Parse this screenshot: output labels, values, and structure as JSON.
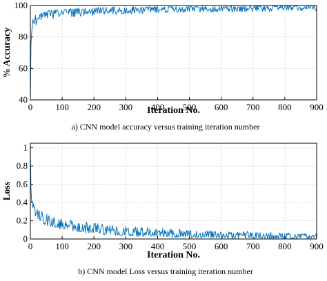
{
  "colors": {
    "series": "#0072BD",
    "grid": "#d9d9d9",
    "axis": "#000000"
  },
  "chart_data": [
    {
      "type": "line",
      "caption": "a)   CNN model accuracy versus training iteration number",
      "xlabel": "Iteration No.",
      "ylabel": "% Accuracy",
      "xlim": [
        0,
        900
      ],
      "ylim": [
        40,
        100
      ],
      "xticks": [
        0,
        100,
        200,
        300,
        400,
        500,
        600,
        700,
        800,
        900
      ],
      "yticks": [
        40,
        60,
        80,
        100
      ],
      "grid": true,
      "series": [
        {
          "x": [
            0,
            1,
            2,
            3,
            5,
            10,
            15,
            20,
            30,
            40,
            50,
            60,
            80,
            100,
            150,
            200,
            250,
            300,
            400,
            500,
            600,
            700,
            800,
            900
          ],
          "y": [
            40,
            70,
            80,
            86,
            89,
            92,
            93,
            94,
            95,
            95.5,
            96,
            96.5,
            97,
            97.3,
            97.8,
            98.2,
            98.5,
            98.7,
            99,
            99.2,
            99.3,
            99.4,
            99.5,
            99.6
          ],
          "dip_y": [
            40,
            55,
            72,
            80,
            84,
            86,
            87,
            88,
            89,
            90,
            91,
            91.5,
            92,
            92.5,
            93,
            93.5,
            94,
            94.5,
            95,
            95.5,
            96,
            96,
            96.5,
            96.5
          ]
        }
      ]
    },
    {
      "type": "line",
      "caption": "b)   CNN model Loss versus training iteration number",
      "xlabel": "Iteration No.",
      "ylabel": "Loss",
      "xlim": [
        0,
        900
      ],
      "ylim": [
        0,
        1.05
      ],
      "xticks": [
        0,
        100,
        200,
        300,
        400,
        500,
        600,
        700,
        800,
        900
      ],
      "yticks": [
        0,
        0.2,
        0.4,
        0.6,
        0.8,
        1
      ],
      "ytick_labels": [
        "0",
        "0.2",
        "0.4",
        "0.6",
        "0.8",
        "1"
      ],
      "grid": true,
      "series": [
        {
          "x": [
            0,
            1,
            2,
            3,
            5,
            10,
            15,
            20,
            30,
            40,
            50,
            60,
            80,
            100,
            150,
            200,
            250,
            300,
            400,
            500,
            600,
            700,
            800,
            900
          ],
          "y": [
            1.0,
            0.72,
            0.55,
            0.45,
            0.38,
            0.3,
            0.26,
            0.23,
            0.2,
            0.18,
            0.16,
            0.15,
            0.13,
            0.12,
            0.09,
            0.07,
            0.055,
            0.045,
            0.03,
            0.022,
            0.017,
            0.013,
            0.01,
            0.008
          ],
          "peak_y": [
            1.0,
            0.9,
            0.6,
            0.55,
            0.5,
            0.42,
            0.38,
            0.35,
            0.33,
            0.3,
            0.28,
            0.26,
            0.24,
            0.22,
            0.2,
            0.18,
            0.16,
            0.14,
            0.12,
            0.1,
            0.09,
            0.08,
            0.07,
            0.06
          ]
        }
      ]
    }
  ]
}
